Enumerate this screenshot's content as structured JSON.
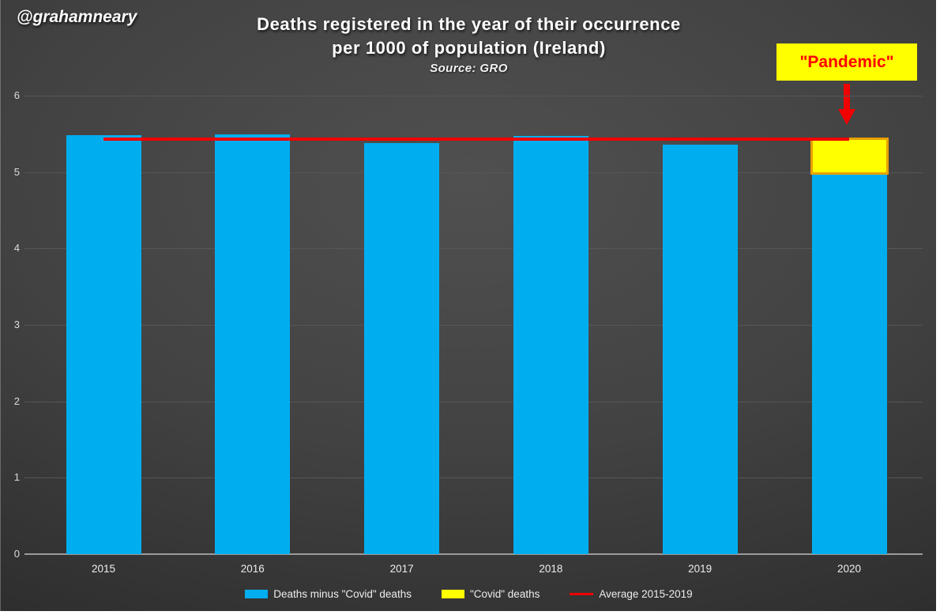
{
  "watermark": "@grahamneary",
  "title": {
    "line1": "Deaths registered in the year of their occurrence",
    "line2": "per 1000 of population (Ireland)",
    "source": "Source: GRO"
  },
  "annotation": {
    "label": "\"Pandemic\""
  },
  "colors": {
    "blue": "#00AEEF",
    "yellow": "#FFFF00",
    "yellow_border": "#E8A000",
    "red": "#F00000",
    "gridline": "#565656",
    "axis_line": "#9B9B9B",
    "tick_text": "#DCDCDC",
    "annotation_bg": "#FFFF00",
    "annotation_text": "#FF0000"
  },
  "chart_data": {
    "type": "bar",
    "stacked": true,
    "title": "Deaths registered in the year of their occurrence per 1000 of population (Ireland)",
    "subtitle": "Source: GRO",
    "categories": [
      "2015",
      "2016",
      "2017",
      "2018",
      "2019",
      "2020"
    ],
    "series": [
      {
        "name": "Deaths minus \"Covid\" deaths",
        "color_key": "blue",
        "values": [
          5.48,
          5.49,
          5.38,
          5.47,
          5.36,
          4.97
        ]
      },
      {
        "name": "\"Covid\" deaths",
        "color_key": "yellow",
        "values": [
          0,
          0,
          0,
          0,
          0,
          0.48
        ]
      }
    ],
    "average_line": {
      "name": "Average 2015-2019",
      "value": 5.43
    },
    "y_ticks": [
      0,
      1,
      2,
      3,
      4,
      5,
      6
    ],
    "ylim": [
      0,
      6
    ],
    "xlabel": "",
    "ylabel": "",
    "grid": true,
    "legend_position": "bottom"
  },
  "legend": {
    "items": [
      {
        "label": "Deaths minus \"Covid\" deaths",
        "swatch": "blue-rect"
      },
      {
        "label": "\"Covid\" deaths",
        "swatch": "yellow-rect"
      },
      {
        "label": "Average 2015-2019",
        "swatch": "red-line"
      }
    ]
  }
}
